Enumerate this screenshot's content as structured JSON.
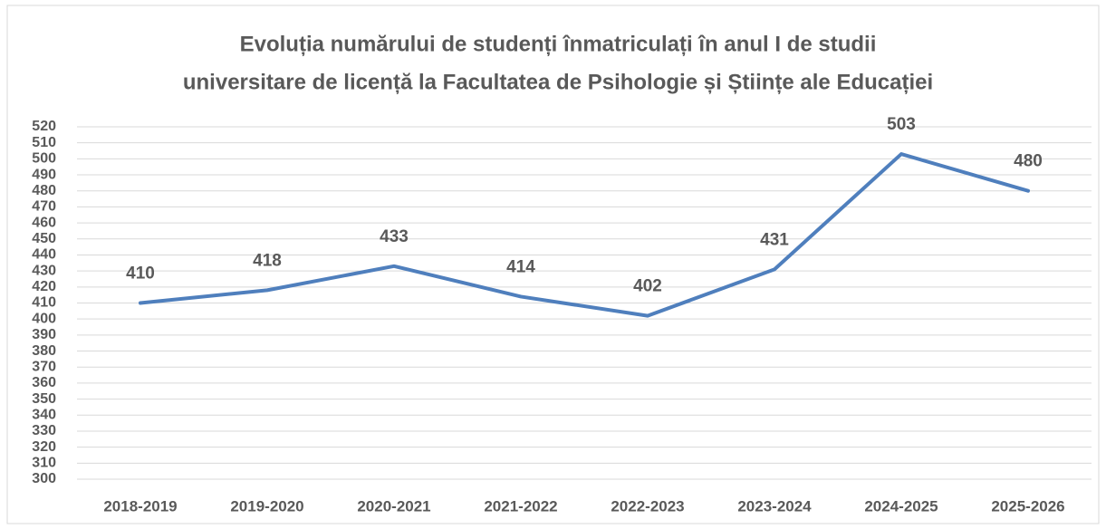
{
  "chart_data": {
    "type": "line",
    "title": [
      "Evoluția numărului de studenți înmatriculați în anul I de studii",
      "universitare de licență la Facultatea de Psihologie și Științe ale Educației"
    ],
    "categories": [
      "2018-2019",
      "2019-2020",
      "2020-2021",
      "2021-2022",
      "2022-2023",
      "2023-2024",
      "2024-2025",
      "2025-2026"
    ],
    "series": [
      {
        "color": "#4f7fbd",
        "values": [
          410,
          418,
          433,
          414,
          402,
          431,
          503,
          480
        ]
      }
    ],
    "ylim": [
      300,
      520
    ],
    "yticks": [
      300,
      310,
      320,
      330,
      340,
      350,
      360,
      370,
      380,
      390,
      400,
      410,
      420,
      430,
      440,
      450,
      460,
      470,
      480,
      490,
      500,
      510,
      520
    ],
    "grid": true
  }
}
